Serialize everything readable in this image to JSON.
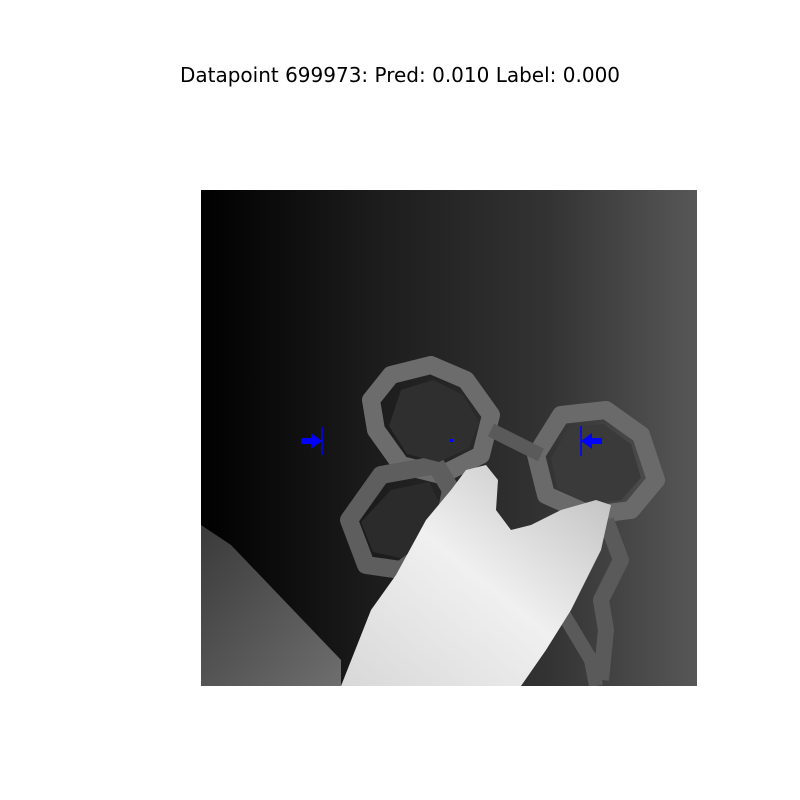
{
  "figure": {
    "title": "Datapoint 699973: Pred: 0.010 Label: 0.000"
  },
  "image": {
    "description_name": "depth-image",
    "marker_color": "#0000ff"
  }
}
